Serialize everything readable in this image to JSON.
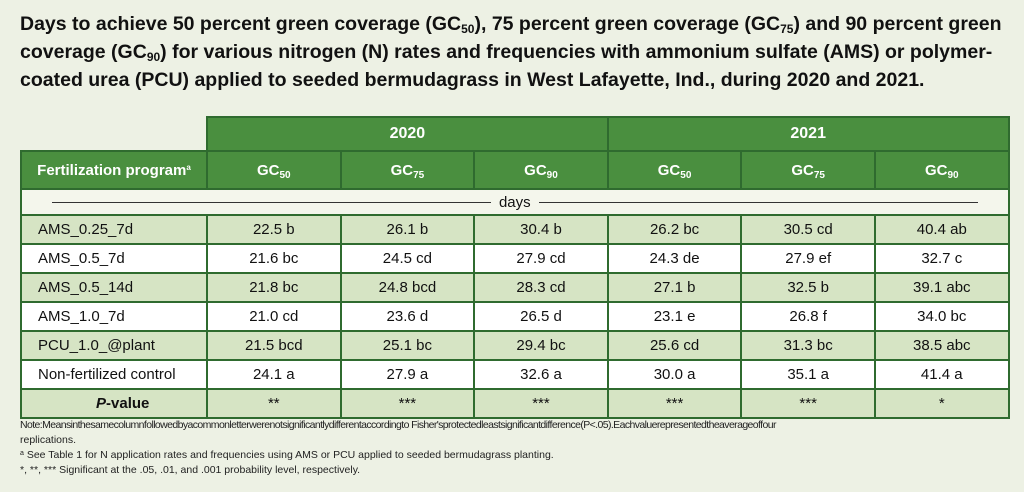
{
  "title": {
    "part1": "Days to achieve 50 percent green coverage (GC",
    "sub1": "50",
    "part2": "), 75 percent green coverage (GC",
    "sub2": "75",
    "part3": ") and 90 percent green coverage (GC",
    "sub3": "90",
    "part4": ") for various nitrogen (N) rates and frequencies with ammonium sulfate (AMS) or polymer-coated urea (PCU) applied to seeded bermudagrass in West Lafayette, Ind., during 2020 and 2021."
  },
  "table": {
    "years": [
      "2020",
      "2021"
    ],
    "program_header": "Fertilization program",
    "program_header_sup": "a",
    "gc_prefix": "GC",
    "gc_subs": [
      "50",
      "75",
      "90",
      "50",
      "75",
      "90"
    ],
    "units": "days",
    "rows": [
      {
        "label": "AMS_0.25_7d",
        "values": [
          "22.5 b",
          "26.1 b",
          "30.4 b",
          "26.2 bc",
          "30.5 cd",
          "40.4 ab"
        ]
      },
      {
        "label": "AMS_0.5_7d",
        "values": [
          "21.6 bc",
          "24.5 cd",
          "27.9 cd",
          "24.3 de",
          "27.9 ef",
          "32.7 c"
        ]
      },
      {
        "label": "AMS_0.5_14d",
        "values": [
          "21.8 bc",
          "24.8 bcd",
          "28.3 cd",
          "27.1 b",
          "32.5 b",
          "39.1 abc"
        ]
      },
      {
        "label": "AMS_1.0_7d",
        "values": [
          "21.0 cd",
          "23.6 d",
          "26.5 d",
          "23.1 e",
          "26.8 f",
          "34.0 bc"
        ]
      },
      {
        "label": "PCU_1.0_@plant",
        "values": [
          "21.5 bcd",
          "25.1 bc",
          "29.4 bc",
          "25.6 cd",
          "31.3 bc",
          "38.5 abc"
        ]
      },
      {
        "label": "Non-fertilized control",
        "values": [
          "24.1 a",
          "27.9 a",
          "32.6 a",
          "30.0 a",
          "35.1 a",
          "41.4 a"
        ]
      }
    ],
    "pvalue": {
      "label_italic": "P",
      "label_rest": "-value",
      "values": [
        "**",
        "***",
        "***",
        "***",
        "***",
        "*"
      ]
    }
  },
  "notes": {
    "note": "Note:Meansinthesamecolumnfollowedbyacommonletterwerenotsignificantlydifferentaccordingto Fisher'sprotectedleastsignificantdifference(P<.05).Eachvaluerepresentedtheaverageoffour",
    "note_cont": "replications.",
    "footnote_a_mark": "a",
    "footnote_a": "See Table 1 for N application rates and frequencies using AMS or PCU applied to seeded bermudagrass planting.",
    "footnote_sig": "*, **, *** Significant at the .05, .01, and .001 probability level, respectively."
  },
  "colors": {
    "header_green": "#4a8f3f",
    "border_green": "#2f6b2f",
    "row_shade": "#d6e4c4",
    "background": "#edf1e4"
  }
}
